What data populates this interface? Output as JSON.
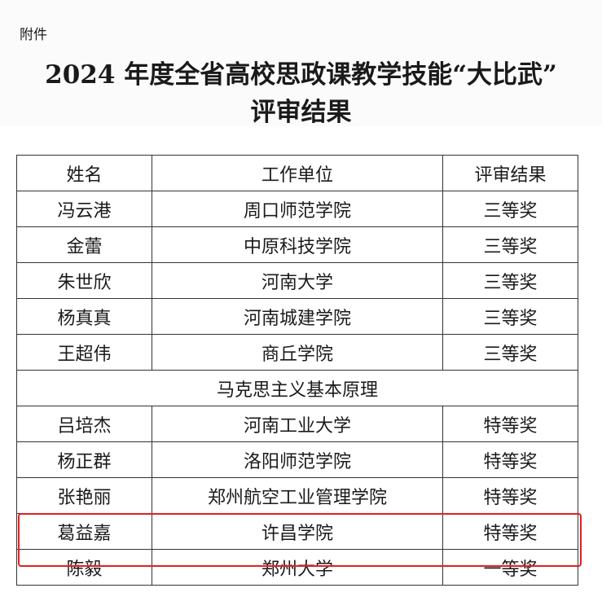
{
  "attachment_label": "附件",
  "title_line1": "2024 年度全省高校思政课教学技能“大比武”",
  "title_line2": "评审结果",
  "table": {
    "headers": [
      "姓名",
      "工作单位",
      "评审结果"
    ],
    "rows": [
      [
        "冯云港",
        "周口师范学院",
        "三等奖"
      ],
      [
        "金蕾",
        "中原科技学院",
        "三等奖"
      ],
      [
        "朱世欣",
        "河南大学",
        "三等奖"
      ],
      [
        "杨真真",
        "河南城建学院",
        "三等奖"
      ],
      [
        "王超伟",
        "商丘学院",
        "三等奖"
      ],
      {
        "section": "马克思主义基本原理"
      },
      [
        "吕培杰",
        "河南工业大学",
        "特等奖"
      ],
      [
        "杨正群",
        "洛阳师范学院",
        "特等奖"
      ],
      [
        "张艳丽",
        "郑州航空工业管理学院",
        "特等奖"
      ],
      [
        "葛益嘉",
        "许昌学院",
        "特等奖"
      ],
      [
        "陈毅",
        "郑州大学",
        "一等奖"
      ]
    ]
  },
  "highlight_color": "#e02020",
  "highlighted_row_index": 9
}
